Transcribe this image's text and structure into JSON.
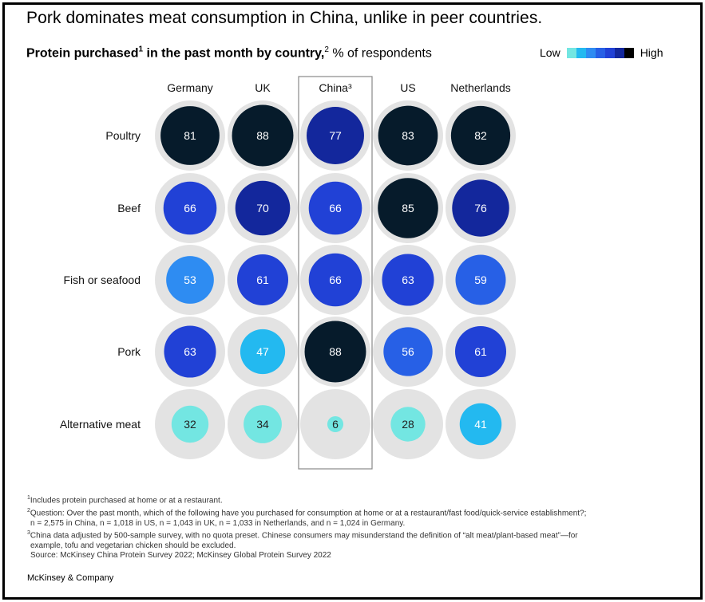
{
  "title": "Pork dominates meat consumption in China, unlike in peer countries.",
  "subtitle": {
    "part1": "Protein purchased",
    "sup1": "1",
    "part2": " in the past month by country,",
    "sup2": "2",
    "part3": " % of respondents"
  },
  "legend": {
    "low": "Low",
    "high": "High",
    "colors": [
      "#73e6e2",
      "#23b9f0",
      "#2e8cf2",
      "#2760e6",
      "#2141d6",
      "#13279c",
      "#000000"
    ]
  },
  "chart_data": {
    "type": "bubble-matrix",
    "columns": [
      "Germany",
      "UK",
      "China³",
      "US",
      "Netherlands"
    ],
    "rows": [
      "Poultry",
      "Beef",
      "Fish or seafood",
      "Pork",
      "Alternative meat"
    ],
    "values": [
      [
        81,
        88,
        77,
        83,
        82
      ],
      [
        66,
        70,
        66,
        85,
        76
      ],
      [
        53,
        61,
        66,
        63,
        59
      ],
      [
        63,
        47,
        88,
        56,
        61
      ],
      [
        32,
        34,
        6,
        28,
        41
      ]
    ],
    "highlight_column": "China³",
    "colors": {
      "darkest": "#061b2b",
      "dark": "#13279c",
      "mid": "#2141d6",
      "medium": "#2760e6",
      "light": "#2e8cf2",
      "cyan": "#23b9f0",
      "aqua": "#73e6e2",
      "background_circle": "#e3e3e3"
    },
    "value_max": 100
  },
  "notes": [
    {
      "sup": "1",
      "text": "Includes protein purchased at home or at a restaurant."
    },
    {
      "sup": "2",
      "text": "Question: Over the past month, which of the following have you purchased for consumption at home or at a restaurant/fast food/quick-service establishment?;"
    },
    {
      "sup": "",
      "text": "n = 2,575 in China, n = 1,018 in US, n = 1,043 in UK, n = 1,033 in Netherlands, and n = 1,024 in Germany."
    },
    {
      "sup": "3",
      "text": "China data adjusted by 500-sample survey, with no quota preset. Chinese consumers may misunderstand the definition of “alt meat/plant-based meat”—for"
    },
    {
      "sup": "",
      "text": "example, tofu and vegetarian chicken should be excluded."
    },
    {
      "sup": "",
      "text": "Source: McKinsey China Protein Survey 2022; McKinsey Global Protein Survey 2022"
    }
  ],
  "brand": "McKinsey & Company"
}
